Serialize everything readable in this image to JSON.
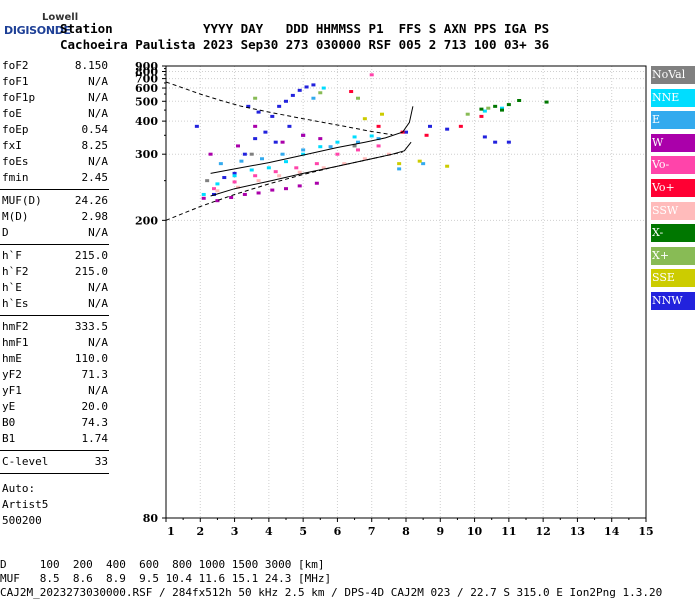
{
  "logo": {
    "brand_top": "Lowell",
    "brand_bottom": "DIGISONDE"
  },
  "header": {
    "line1": "Station            YYYY DAY   DDD HHMMSS P1  FFS S AXN PPS IGA PS",
    "line2": "Cachoeira Paulista 2023 Sep30 273 030000 RSF 005 2 713 100 03+ 36"
  },
  "params": {
    "group1": [
      {
        "name": "foF2",
        "value": "8.150"
      },
      {
        "name": "foF1",
        "value": "N/A"
      },
      {
        "name": "foF1p",
        "value": "N/A"
      },
      {
        "name": "foE",
        "value": "N/A"
      },
      {
        "name": "foEp",
        "value": "0.54"
      },
      {
        "name": "fxI",
        "value": "8.25"
      },
      {
        "name": "foEs",
        "value": "N/A"
      },
      {
        "name": "fmin",
        "value": "2.45"
      }
    ],
    "group2": [
      {
        "name": "MUF(D)",
        "value": "24.26"
      },
      {
        "name": "M(D)",
        "value": "2.98"
      },
      {
        "name": "D",
        "value": "N/A"
      }
    ],
    "group3": [
      {
        "name": "h`F",
        "value": "215.0"
      },
      {
        "name": "h`F2",
        "value": "215.0"
      },
      {
        "name": "h`E",
        "value": "N/A"
      },
      {
        "name": "h`Es",
        "value": "N/A"
      }
    ],
    "group4": [
      {
        "name": "hmF2",
        "value": "333.5"
      },
      {
        "name": "hmF1",
        "value": "N/A"
      },
      {
        "name": "hmE",
        "value": "110.0"
      },
      {
        "name": "yF2",
        "value": "71.3"
      },
      {
        "name": "yF1",
        "value": "N/A"
      },
      {
        "name": "yE",
        "value": "20.0"
      },
      {
        "name": "B0",
        "value": "74.3"
      },
      {
        "name": "B1",
        "value": "1.74"
      }
    ],
    "group5": [
      {
        "name": "C-level",
        "value": "33"
      }
    ],
    "auto_lines": [
      "Auto:",
      "Artist5",
      "500200"
    ]
  },
  "legend": [
    {
      "label": "NoVal",
      "color": "#808080",
      "text_color": "#ffffff"
    },
    {
      "label": "NNE",
      "color": "#00ddff",
      "text_color": "#ffffff"
    },
    {
      "label": "E",
      "color": "#33aaee",
      "text_color": "#ffffff"
    },
    {
      "label": "W",
      "color": "#aa00aa",
      "text_color": "#ffffff"
    },
    {
      "label": "Vo-",
      "color": "#ff44aa",
      "text_color": "#ffffff"
    },
    {
      "label": "Vo+",
      "color": "#ff0033",
      "text_color": "#ffffff"
    },
    {
      "label": "SSW",
      "color": "#ffbbbb",
      "text_color": "#ffffff"
    },
    {
      "label": "X-",
      "color": "#007700",
      "text_color": "#ffffff"
    },
    {
      "label": "X+",
      "color": "#88bb55",
      "text_color": "#ffffff"
    },
    {
      "label": "SSE",
      "color": "#cccc00",
      "text_color": "#ffffff"
    },
    {
      "label": "NNW",
      "color": "#2222dd",
      "text_color": "#ffffff"
    }
  ],
  "footer": {
    "line1": "D     100  200  400  600  800 1000 1500 3000 [km]",
    "line2": "MUF   8.5  8.6  8.9  9.5 10.4 11.6 15.1 24.3 [MHz]",
    "line3": "CAJ2M_2023273030000.RSF / 284fx512h 50 kHz 2.5 km / DPS-4D CAJ2M 023 / 22.7 S 315.0 E Ion2Png 1.3.20"
  },
  "chart_data": {
    "type": "scatter",
    "x_ticks": [
      "1",
      "2",
      "3",
      "4",
      "5",
      "6",
      "7",
      "8",
      "9",
      "10",
      "11",
      "12",
      "13",
      "14",
      "15"
    ],
    "y_ticks": [
      "80",
      "200",
      "300",
      "400",
      "500",
      "600",
      "700",
      "800",
      "900"
    ],
    "xlim": [
      1,
      15
    ],
    "y_scale": "reciprocal",
    "ylim": [
      80,
      900
    ],
    "grid": true,
    "legend_placement": "right",
    "series": [
      {
        "name": "NNW",
        "color": "#2222dd",
        "points": [
          [
            2.4,
            230
          ],
          [
            2.7,
            255
          ],
          [
            3.0,
            262
          ],
          [
            3.3,
            300
          ],
          [
            3.6,
            340
          ],
          [
            3.9,
            360
          ],
          [
            4.1,
            420
          ],
          [
            4.3,
            470
          ],
          [
            4.5,
            500
          ],
          [
            4.7,
            540
          ],
          [
            4.9,
            580
          ],
          [
            5.1,
            610
          ],
          [
            5.3,
            630
          ],
          [
            5.0,
            350
          ],
          [
            4.6,
            380
          ],
          [
            4.2,
            330
          ],
          [
            3.7,
            440
          ],
          [
            3.4,
            470
          ],
          [
            1.9,
            380
          ],
          [
            8.0,
            360
          ],
          [
            8.7,
            380
          ],
          [
            9.2,
            370
          ],
          [
            10.6,
            330
          ],
          [
            11.0,
            330
          ],
          [
            10.3,
            345
          ]
        ]
      },
      {
        "name": "NNE",
        "color": "#00ddff",
        "points": [
          [
            2.5,
            245
          ],
          [
            3.0,
            258
          ],
          [
            3.5,
            268
          ],
          [
            4.0,
            272
          ],
          [
            4.5,
            284
          ],
          [
            5.0,
            300
          ],
          [
            5.5,
            318
          ],
          [
            6.0,
            330
          ],
          [
            6.5,
            345
          ],
          [
            7.0,
            348
          ],
          [
            5.6,
            600
          ],
          [
            10.3,
            445
          ],
          [
            10.8,
            460
          ],
          [
            2.1,
            230
          ]
        ]
      },
      {
        "name": "E",
        "color": "#33aaee",
        "points": [
          [
            2.6,
            280
          ],
          [
            3.2,
            285
          ],
          [
            3.8,
            290
          ],
          [
            4.4,
            300
          ],
          [
            5.0,
            310
          ],
          [
            5.8,
            318
          ],
          [
            6.6,
            330
          ],
          [
            7.2,
            340
          ],
          [
            5.3,
            520
          ],
          [
            7.8,
            270
          ],
          [
            8.5,
            280
          ]
        ]
      },
      {
        "name": "W",
        "color": "#aa00aa",
        "points": [
          [
            2.1,
            225
          ],
          [
            2.5,
            222
          ],
          [
            2.9,
            226
          ],
          [
            3.3,
            230
          ],
          [
            3.7,
            232
          ],
          [
            4.1,
            236
          ],
          [
            4.5,
            238
          ],
          [
            4.9,
            242
          ],
          [
            5.4,
            246
          ],
          [
            2.3,
            300
          ],
          [
            3.1,
            320
          ],
          [
            3.6,
            380
          ],
          [
            4.4,
            330
          ],
          [
            5.0,
            350
          ],
          [
            5.5,
            340
          ]
        ]
      },
      {
        "name": "Vo-",
        "color": "#ff44aa",
        "points": [
          [
            2.4,
            238
          ],
          [
            3.0,
            248
          ],
          [
            3.6,
            258
          ],
          [
            4.2,
            265
          ],
          [
            4.8,
            272
          ],
          [
            5.4,
            280
          ],
          [
            6.0,
            300
          ],
          [
            6.6,
            310
          ],
          [
            7.2,
            320
          ],
          [
            7.0,
            750
          ]
        ]
      },
      {
        "name": "Vo+",
        "color": "#ff0033",
        "points": [
          [
            6.4,
            570
          ],
          [
            7.2,
            380
          ],
          [
            7.9,
            360
          ],
          [
            8.6,
            350
          ],
          [
            9.6,
            380
          ],
          [
            10.2,
            420
          ]
        ]
      },
      {
        "name": "SSW",
        "color": "#ffbbbb",
        "points": [
          [
            2.5,
            235
          ],
          [
            3.1,
            240
          ],
          [
            3.7,
            250
          ],
          [
            4.3,
            258
          ],
          [
            4.9,
            264
          ],
          [
            5.6,
            272
          ],
          [
            6.2,
            280
          ],
          [
            6.8,
            290
          ],
          [
            7.5,
            300
          ]
        ]
      },
      {
        "name": "X-",
        "color": "#007700",
        "points": [
          [
            10.2,
            455
          ],
          [
            10.6,
            470
          ],
          [
            11.0,
            480
          ],
          [
            11.3,
            505
          ],
          [
            12.1,
            495
          ],
          [
            10.8,
            450
          ]
        ]
      },
      {
        "name": "X+",
        "color": "#88bb55",
        "points": [
          [
            5.5,
            560
          ],
          [
            6.6,
            520
          ],
          [
            9.8,
            430
          ],
          [
            10.4,
            460
          ],
          [
            3.6,
            520
          ]
        ]
      },
      {
        "name": "SSE",
        "color": "#cccc00",
        "points": [
          [
            6.8,
            410
          ],
          [
            7.3,
            430
          ],
          [
            7.8,
            280
          ],
          [
            8.4,
            285
          ],
          [
            9.2,
            275
          ]
        ]
      },
      {
        "name": "NoVal",
        "color": "#808080",
        "points": [
          [
            2.2,
            250
          ],
          [
            3.5,
            300
          ],
          [
            6.5,
            320
          ]
        ]
      }
    ],
    "lines": [
      {
        "name": "trace-upper",
        "style": "solid",
        "points": [
          [
            2.3,
            262
          ],
          [
            3.0,
            270
          ],
          [
            4.0,
            282
          ],
          [
            5.0,
            298
          ],
          [
            6.0,
            316
          ],
          [
            6.8,
            330
          ],
          [
            7.4,
            342
          ],
          [
            7.9,
            360
          ],
          [
            8.1,
            395
          ],
          [
            8.2,
            470
          ]
        ]
      },
      {
        "name": "trace-lower",
        "style": "solid",
        "points": [
          [
            2.3,
            228
          ],
          [
            3.0,
            238
          ],
          [
            4.0,
            249
          ],
          [
            5.0,
            262
          ],
          [
            6.0,
            275
          ],
          [
            7.0,
            290
          ],
          [
            7.6,
            300
          ],
          [
            7.95,
            308
          ],
          [
            8.15,
            330
          ]
        ]
      },
      {
        "name": "muf-dashed-upper",
        "style": "dashed",
        "points": [
          [
            1.0,
            660
          ],
          [
            1.5,
            600
          ],
          [
            2.0,
            550
          ],
          [
            2.6,
            505
          ],
          [
            3.2,
            470
          ],
          [
            4.0,
            440
          ],
          [
            5.0,
            410
          ],
          [
            6.0,
            385
          ],
          [
            7.0,
            362
          ],
          [
            7.6,
            352
          ]
        ]
      },
      {
        "name": "muf-dashed-lower",
        "style": "dashed",
        "points": [
          [
            1.0,
            200
          ],
          [
            2.0,
            215
          ],
          [
            3.0,
            230
          ],
          [
            4.0,
            245
          ],
          [
            5.0,
            260
          ],
          [
            6.0,
            275
          ],
          [
            7.0,
            290
          ],
          [
            7.9,
            305
          ]
        ]
      }
    ]
  }
}
